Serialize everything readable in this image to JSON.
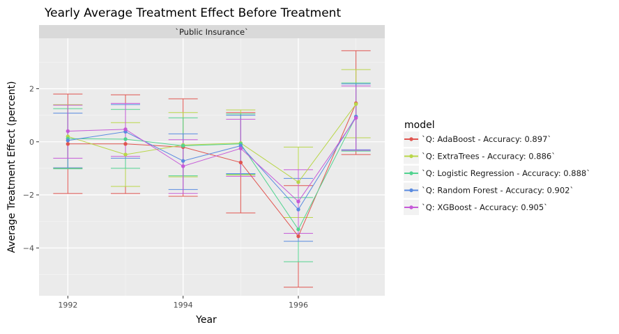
{
  "chart_data": {
    "type": "line",
    "title": "Yearly Average Treatment Effect Before Treatment",
    "facet_label": "`Public Insurance`",
    "xlabel": "Year",
    "ylabel": "Average Treatment Effect (percent)",
    "x_ticks": [
      1992,
      1994,
      1996
    ],
    "y_ticks": [
      -4,
      -2,
      0,
      2
    ],
    "xlim": [
      1991.5,
      1997.5
    ],
    "ylim": [
      -5.8,
      3.9
    ],
    "grid": true,
    "legend": {
      "title": "model",
      "position": "right"
    },
    "x": [
      1992,
      1993,
      1994,
      1995,
      1996,
      1997
    ],
    "series": [
      {
        "name": "`Q: AdaBoost - Accuracy: 0.897`",
        "color": "#e0544f",
        "values": [
          -0.08,
          -0.08,
          -0.2,
          -0.78,
          -3.56,
          1.45
        ],
        "lower": [
          -1.95,
          -1.95,
          -2.05,
          -2.68,
          -5.48,
          -0.48
        ],
        "upper": [
          1.8,
          1.77,
          1.62,
          1.1,
          -1.65,
          3.43
        ]
      },
      {
        "name": "`Q: ExtraTrees - Accuracy: 0.886`",
        "color": "#b9d649",
        "values": [
          0.2,
          -0.48,
          -0.12,
          -0.05,
          -1.52,
          1.42
        ],
        "lower": [
          -1.0,
          -1.68,
          -1.32,
          -1.25,
          -2.85,
          0.15
        ],
        "upper": [
          1.4,
          0.72,
          1.1,
          1.2,
          -0.2,
          2.72
        ]
      },
      {
        "name": "`Q: Logistic Regression - Accuracy: 0.888`",
        "color": "#52d390",
        "values": [
          0.12,
          0.1,
          -0.15,
          -0.08,
          -3.3,
          0.95
        ],
        "lower": [
          -1.02,
          -1.0,
          -1.28,
          -1.22,
          -4.52,
          -0.35
        ],
        "upper": [
          1.25,
          1.22,
          0.9,
          1.05,
          -2.1,
          2.22
        ]
      },
      {
        "name": "`Q: Random Forest - Accuracy: 0.902`",
        "color": "#5a8be0",
        "values": [
          0.05,
          0.38,
          -0.72,
          -0.15,
          -2.55,
          0.95
        ],
        "lower": [
          -0.98,
          -0.62,
          -1.8,
          -1.2,
          -3.75,
          -0.3
        ],
        "upper": [
          1.08,
          1.4,
          0.3,
          1.0,
          -1.38,
          2.18
        ]
      },
      {
        "name": "`Q: XGBoost - Accuracy: 0.905`",
        "color": "#c65ad8",
        "values": [
          0.4,
          0.47,
          -0.92,
          -0.25,
          -2.25,
          0.9
        ],
        "lower": [
          -0.62,
          -0.55,
          -1.95,
          -1.3,
          -3.45,
          -0.32
        ],
        "upper": [
          1.38,
          1.45,
          0.08,
          0.85,
          -1.05,
          2.1
        ]
      }
    ]
  }
}
